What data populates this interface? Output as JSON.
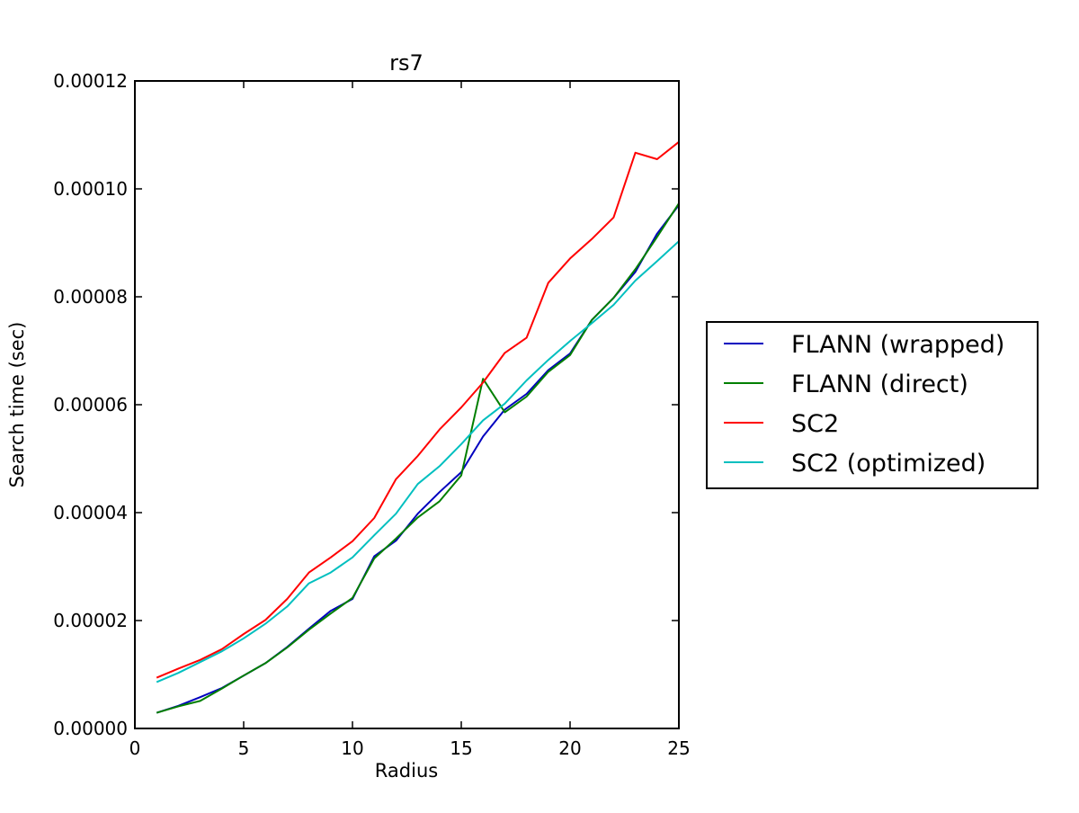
{
  "chart_data": {
    "type": "line",
    "title": "rs7",
    "xlabel": "Radius",
    "ylabel": "Search time (sec)",
    "xlim": [
      0,
      25
    ],
    "ylim": [
      0,
      0.00012
    ],
    "xticks": [
      0,
      5,
      10,
      15,
      20,
      25
    ],
    "xtick_labels": [
      "0",
      "5",
      "10",
      "15",
      "20",
      "25"
    ],
    "yticks": [
      0,
      2e-05,
      4e-05,
      6e-05,
      8e-05,
      0.0001,
      0.00012
    ],
    "ytick_labels": [
      "0.00000",
      "0.00002",
      "0.00004",
      "0.00006",
      "0.00008",
      "0.00010",
      "0.00012"
    ],
    "grid": false,
    "legend_position": "outside-right",
    "x": [
      1,
      2,
      3,
      4,
      5,
      6,
      7,
      8,
      9,
      10,
      11,
      12,
      13,
      14,
      15,
      16,
      17,
      18,
      19,
      20,
      21,
      22,
      23,
      24,
      25
    ],
    "series": [
      {
        "name": "FLANN (wrapped)",
        "color": "#0000bf",
        "values": [
          2.9e-06,
          4.2e-06,
          5.8e-06,
          7.5e-06,
          9.8e-06,
          1.21e-05,
          1.51e-05,
          1.85e-05,
          2.18e-05,
          2.4e-05,
          3.19e-05,
          3.48e-05,
          3.98e-05,
          4.38e-05,
          4.75e-05,
          5.41e-05,
          5.91e-05,
          6.2e-05,
          6.64e-05,
          6.95e-05,
          7.57e-05,
          7.98e-05,
          8.46e-05,
          9.17e-05,
          9.7e-05
        ]
      },
      {
        "name": "FLANN (direct)",
        "color": "#007f00",
        "values": [
          2.9e-06,
          4.1e-06,
          5.1e-06,
          7.4e-06,
          9.8e-06,
          1.21e-05,
          1.5e-05,
          1.83e-05,
          2.13e-05,
          2.42e-05,
          3.15e-05,
          3.52e-05,
          3.91e-05,
          4.21e-05,
          4.69e-05,
          6.48e-05,
          5.86e-05,
          6.15e-05,
          6.61e-05,
          6.92e-05,
          7.57e-05,
          7.98e-05,
          8.51e-05,
          9.11e-05,
          9.73e-05
        ]
      },
      {
        "name": "SC2",
        "color": "#ff0000",
        "values": [
          9.4e-06,
          1.11e-05,
          1.27e-05,
          1.47e-05,
          1.75e-05,
          2.01e-05,
          2.4e-05,
          2.89e-05,
          3.17e-05,
          3.47e-05,
          3.9e-05,
          4.62e-05,
          5.05e-05,
          5.54e-05,
          5.95e-05,
          6.41e-05,
          6.96e-05,
          7.24e-05,
          8.26e-05,
          8.71e-05,
          9.07e-05,
          9.47e-05,
          0.0001067,
          0.0001055,
          0.0001087
        ]
      },
      {
        "name": "SC2 (optimized)",
        "color": "#00bfbf",
        "values": [
          8.6e-06,
          1.03e-05,
          1.23e-05,
          1.43e-05,
          1.67e-05,
          1.94e-05,
          2.26e-05,
          2.69e-05,
          2.89e-05,
          3.17e-05,
          3.58e-05,
          3.98e-05,
          4.53e-05,
          4.86e-05,
          5.27e-05,
          5.71e-05,
          6.02e-05,
          6.45e-05,
          6.83e-05,
          7.18e-05,
          7.51e-05,
          7.85e-05,
          8.3e-05,
          8.66e-05,
          9.03e-05
        ]
      }
    ]
  }
}
